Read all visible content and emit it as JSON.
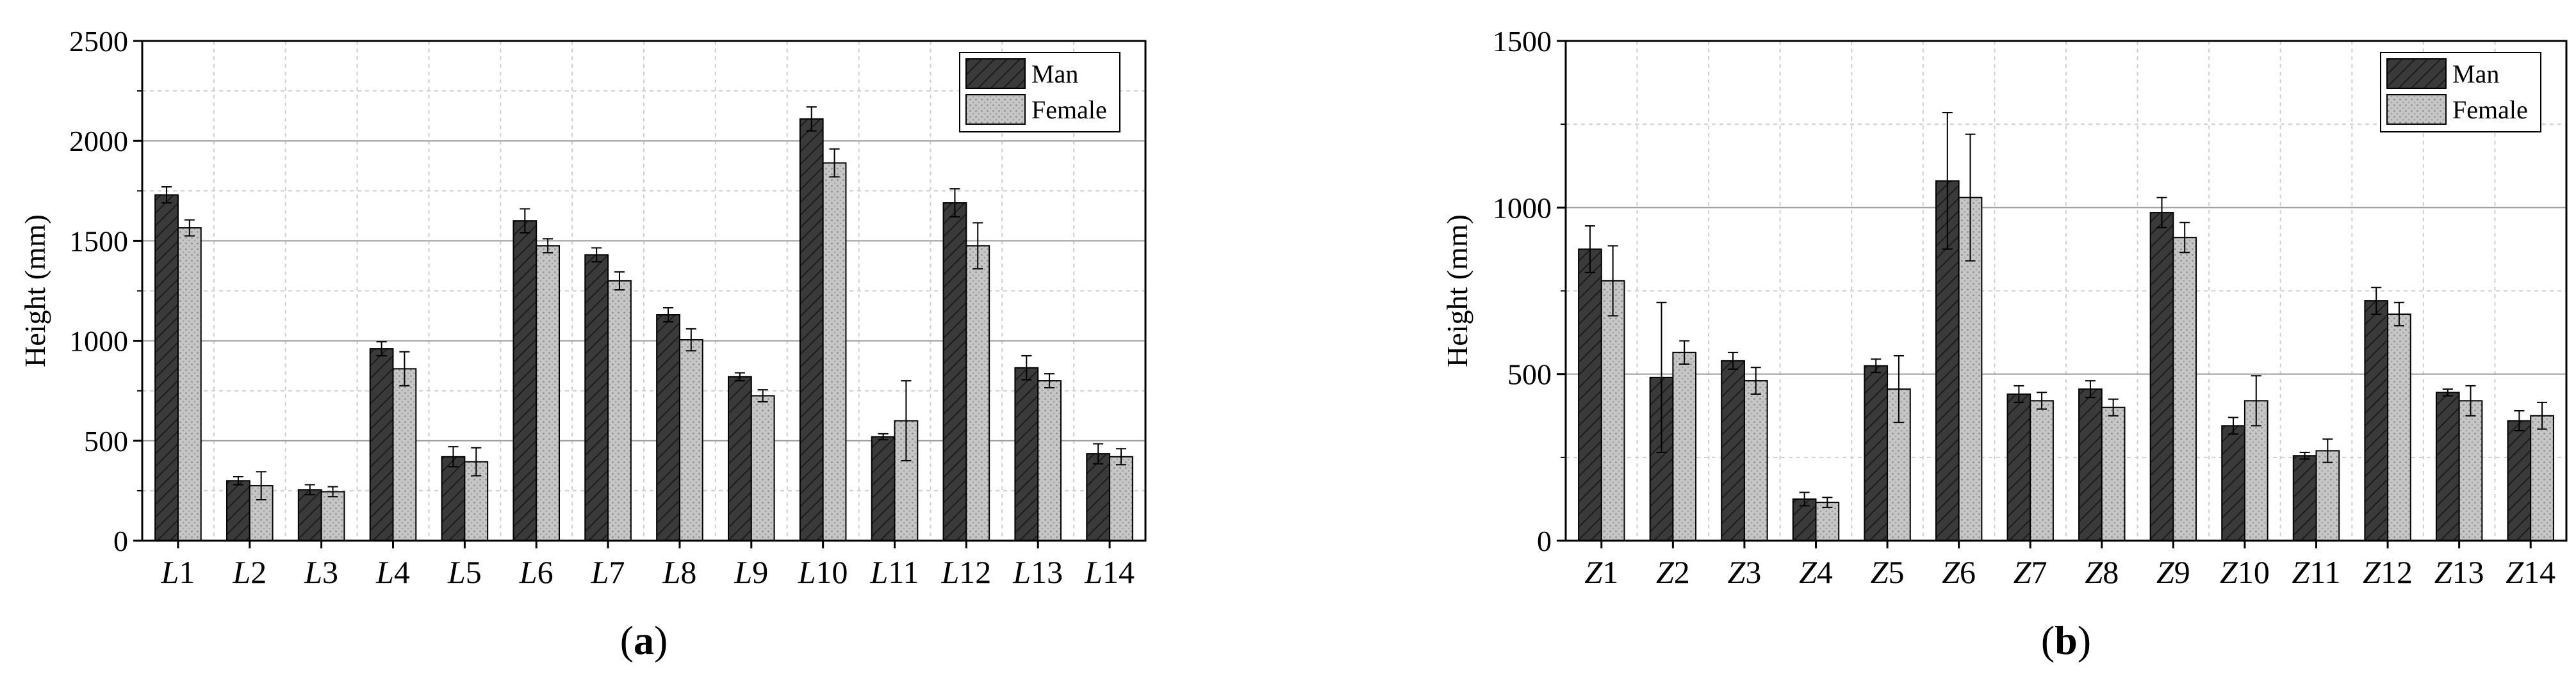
{
  "colors": {
    "man_fill": "#3a3a3a",
    "female_fill": "#bdbdbd",
    "grid_major": "#9a9a9a",
    "grid_minor": "#cfcfcf",
    "axis": "#000000"
  },
  "chart_data": [
    {
      "type": "bar",
      "panel_label": "(a)",
      "panel_letter": "a",
      "xlabel": "",
      "ylabel": "Height (mm)",
      "ylim": [
        0,
        2500
      ],
      "yticks": [
        0,
        500,
        1000,
        1500,
        2000,
        2500
      ],
      "categories": [
        "L1",
        "L2",
        "L3",
        "L4",
        "L5",
        "L6",
        "L7",
        "L8",
        "L9",
        "L10",
        "L11",
        "L12",
        "L13",
        "L14"
      ],
      "category_prefix": "L",
      "category_numbers": [
        "1",
        "2",
        "3",
        "4",
        "5",
        "6",
        "7",
        "8",
        "9",
        "10",
        "11",
        "12",
        "13",
        "14"
      ],
      "grid": true,
      "legend_position": "top-right",
      "series": [
        {
          "name": "Man",
          "values": [
            1730,
            300,
            255,
            960,
            420,
            1600,
            1430,
            1130,
            820,
            2110,
            520,
            1690,
            865,
            435
          ],
          "errors": [
            40,
            20,
            25,
            35,
            50,
            60,
            35,
            35,
            20,
            60,
            15,
            70,
            60,
            50
          ]
        },
        {
          "name": "Female",
          "values": [
            1565,
            275,
            245,
            860,
            395,
            1475,
            1300,
            1005,
            725,
            1890,
            600,
            1475,
            800,
            420
          ],
          "errors": [
            40,
            70,
            25,
            85,
            70,
            35,
            45,
            55,
            30,
            70,
            200,
            115,
            35,
            40
          ]
        }
      ]
    },
    {
      "type": "bar",
      "panel_label": "(b)",
      "panel_letter": "b",
      "xlabel": "",
      "ylabel": "Height (mm)",
      "ylim": [
        0,
        1500
      ],
      "yticks": [
        0,
        500,
        1000,
        1500
      ],
      "categories": [
        "Z1",
        "Z2",
        "Z3",
        "Z4",
        "Z5",
        "Z6",
        "Z7",
        "Z8",
        "Z9",
        "Z10",
        "Z11",
        "Z12",
        "Z13",
        "Z14"
      ],
      "category_prefix": "Z",
      "category_numbers": [
        "1",
        "2",
        "3",
        "4",
        "5",
        "6",
        "7",
        "8",
        "9",
        "10",
        "11",
        "12",
        "13",
        "14"
      ],
      "grid": true,
      "legend_position": "top-right",
      "series": [
        {
          "name": "Man",
          "values": [
            875,
            490,
            540,
            125,
            525,
            1080,
            440,
            455,
            985,
            345,
            255,
            720,
            445,
            360
          ],
          "errors": [
            70,
            225,
            25,
            20,
            20,
            205,
            25,
            25,
            45,
            25,
            10,
            40,
            10,
            30
          ]
        },
        {
          "name": "Female",
          "values": [
            780,
            565,
            480,
            115,
            455,
            1030,
            420,
            400,
            910,
            420,
            270,
            680,
            420,
            375
          ],
          "errors": [
            105,
            35,
            40,
            15,
            100,
            190,
            25,
            25,
            45,
            75,
            35,
            35,
            45,
            40
          ]
        }
      ]
    }
  ]
}
